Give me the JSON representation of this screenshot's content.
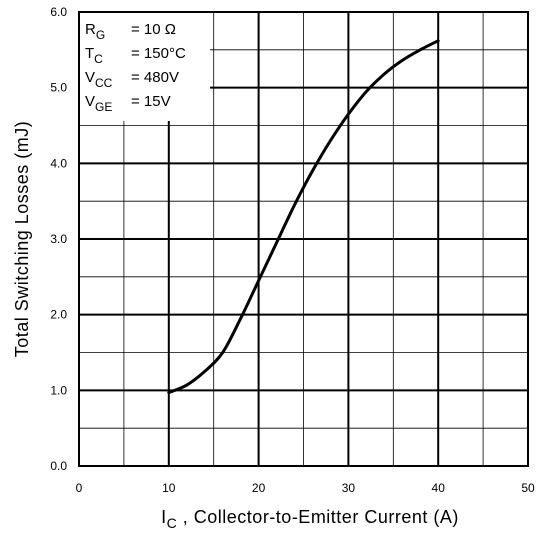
{
  "chart_data": {
    "type": "line",
    "xlabel_main": "I",
    "xlabel_sub": "C",
    "xlabel_rest": " , Collector-to-Emitter Current (A)",
    "ylabel": "Total Switching Losses (mJ)",
    "xlim": [
      0,
      50
    ],
    "ylim": [
      0.0,
      6.0
    ],
    "x_ticks": [
      "0",
      "10",
      "20",
      "30",
      "40",
      "50"
    ],
    "y_ticks": [
      "0.0",
      "1.0",
      "2.0",
      "3.0",
      "4.0",
      "5.0",
      "6.0"
    ],
    "grid": true,
    "conditions": [
      {
        "main": "R",
        "sub": "G",
        "value": "= 10 Ω"
      },
      {
        "main": "T",
        "sub": "C",
        "value": "= 150°C"
      },
      {
        "main": "V",
        "sub": "CC",
        "value": "= 480V"
      },
      {
        "main": "V",
        "sub": "GE",
        "value": "= 15V"
      }
    ],
    "series": [
      {
        "x": [
          10,
          12,
          14,
          16,
          18,
          20,
          22,
          24,
          26,
          28,
          30,
          32,
          34,
          36,
          38,
          40
        ],
        "y": [
          0.97,
          1.07,
          1.25,
          1.5,
          1.95,
          2.45,
          2.95,
          3.45,
          3.9,
          4.3,
          4.65,
          4.95,
          5.18,
          5.36,
          5.5,
          5.62
        ]
      }
    ]
  }
}
